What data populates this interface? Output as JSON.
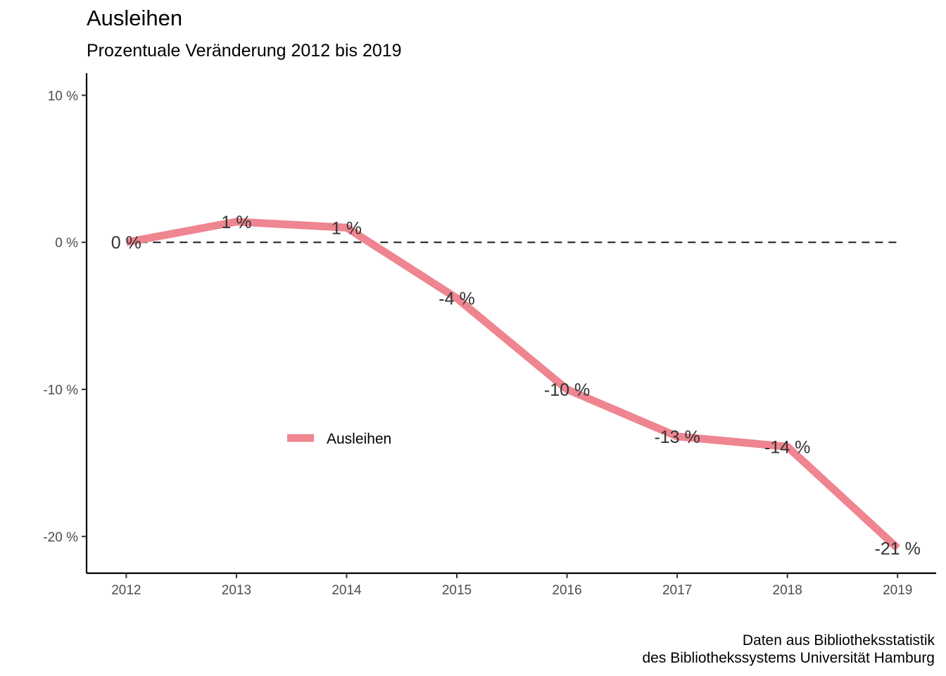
{
  "chart_data": {
    "type": "line",
    "title": "Ausleihen",
    "subtitle": "Prozentuale Veränderung 2012 bis 2019",
    "caption_lines": [
      "Daten aus Bibliotheksstatistik",
      "des Bibliothekssystems Universität Hamburg"
    ],
    "xlabel": "",
    "ylabel": "",
    "x": [
      2012,
      2013,
      2014,
      2015,
      2016,
      2017,
      2018,
      2019
    ],
    "x_tick_labels": [
      "2012",
      "2013",
      "2014",
      "2015",
      "2016",
      "2017",
      "2018",
      "2019"
    ],
    "y_ticks": [
      10,
      0,
      -10,
      -20
    ],
    "y_tick_labels": [
      "10 %",
      "0 %",
      "-10 %",
      "-20 %"
    ],
    "ylim": [
      -22.5,
      11.5
    ],
    "xlim": [
      2011.64,
      2019.35
    ],
    "series": [
      {
        "name": "Ausleihen",
        "color": "#EE8590",
        "values": [
          0,
          1.4,
          1.0,
          -3.8,
          -10.0,
          -13.2,
          -13.9,
          -20.8
        ],
        "value_labels": [
          "0 %",
          "1 %",
          "1 %",
          "-4 %",
          "-10 %",
          "-13 %",
          "-14 %",
          "-21 %"
        ]
      }
    ],
    "reference_line": {
      "y": 0,
      "style": "dashed",
      "color": "#333333"
    },
    "legend": {
      "position": "inside-left",
      "entries": [
        "Ausleihen"
      ]
    },
    "grid": false
  }
}
